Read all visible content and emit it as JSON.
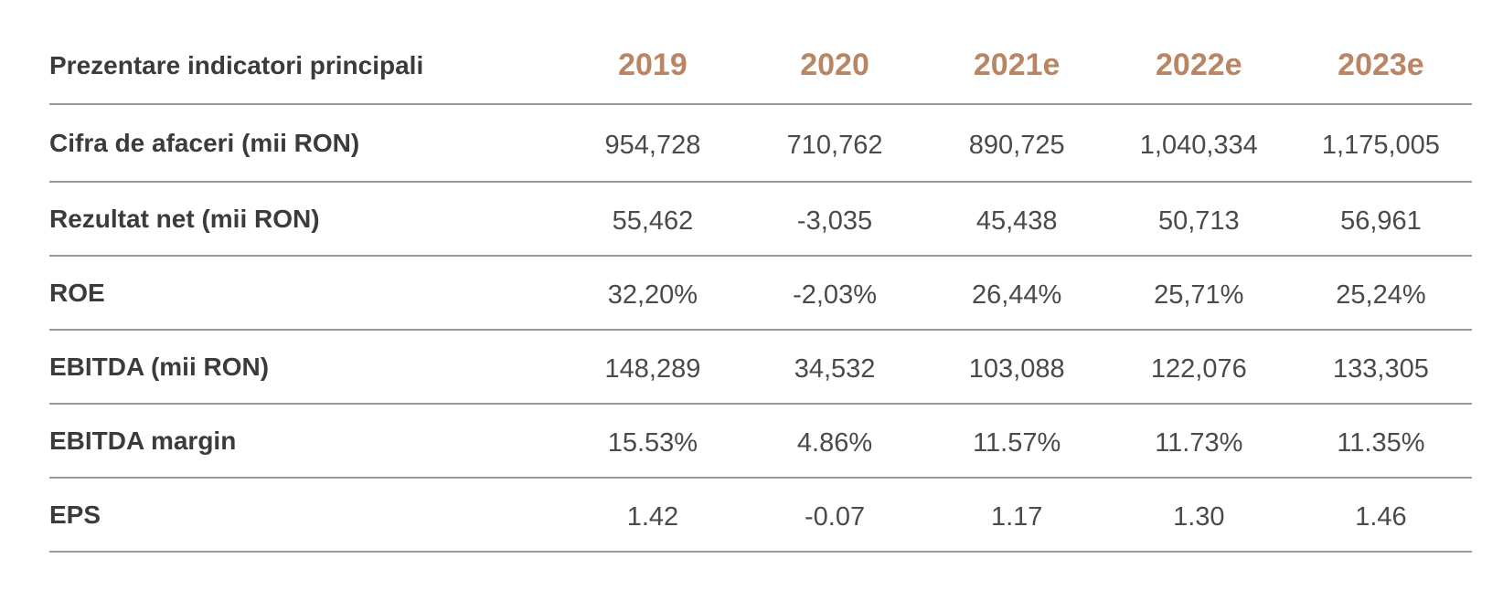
{
  "chart_data": {
    "type": "table",
    "title": "Prezentare indicatori principali",
    "columns": [
      "2019",
      "2020",
      "2021e",
      "2022e",
      "2023e"
    ],
    "rows": [
      {
        "label": "Cifra de afaceri (mii RON)",
        "values": [
          "954,728",
          "710,762",
          "890,725",
          "1,040,334",
          "1,175,005"
        ]
      },
      {
        "label": "Rezultat net (mii RON)",
        "values": [
          "55,462",
          "-3,035",
          "45,438",
          "50,713",
          "56,961"
        ]
      },
      {
        "label": "ROE",
        "values": [
          "32,20%",
          "-2,03%",
          "26,44%",
          "25,71%",
          "25,24%"
        ]
      },
      {
        "label": "EBITDA (mii RON)",
        "values": [
          "148,289",
          "34,532",
          "103,088",
          "122,076",
          "133,305"
        ]
      },
      {
        "label": "EBITDA margin",
        "values": [
          "15.53%",
          "4.86%",
          "11.57%",
          "11.73%",
          "11.35%"
        ]
      },
      {
        "label": "EPS",
        "values": [
          "1.42",
          "-0.07",
          "1.17",
          "1.30",
          "1.46"
        ]
      }
    ],
    "colors": {
      "header_year": "#b98563",
      "label_text": "#3b3b3b",
      "value_text": "#4a4a4a",
      "rule": "#9a9a9a"
    }
  }
}
